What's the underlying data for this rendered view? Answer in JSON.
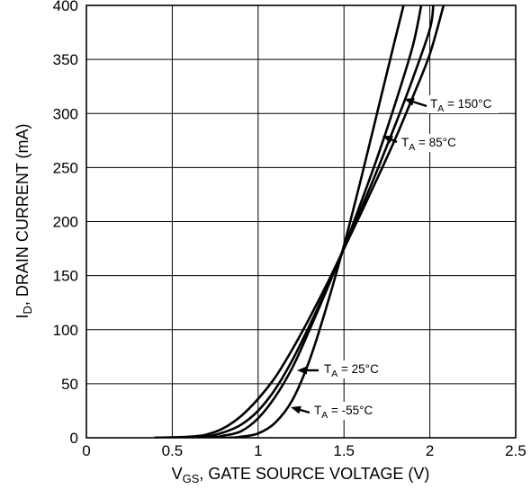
{
  "chart_data": {
    "type": "line",
    "title": "",
    "xlabel": {
      "main": "V",
      "sub": "GS",
      "rest": ", GATE SOURCE VOLTAGE (V)"
    },
    "ylabel": {
      "main": "I",
      "sub": "D",
      "rest": ", DRAIN CURRENT (mA)"
    },
    "xlim": [
      0,
      2.5
    ],
    "ylim": [
      0,
      400
    ],
    "xticks": [
      0,
      0.5,
      1,
      1.5,
      2,
      2.5
    ],
    "xtick_labels": [
      "0",
      "0.5",
      "1",
      "1.5",
      "2",
      "2.5"
    ],
    "yticks": [
      0,
      50,
      100,
      150,
      200,
      250,
      300,
      350,
      400
    ],
    "ytick_labels": [
      "0",
      "50",
      "100",
      "150",
      "200",
      "250",
      "300",
      "350",
      "400"
    ],
    "grid": true,
    "legend": "none",
    "line_color": "#000000",
    "series": [
      {
        "name": "T_A = -55°C",
        "x": [
          0.4,
          0.8,
          0.9,
          1.0,
          1.1,
          1.2,
          1.3,
          1.4,
          1.5,
          1.6,
          1.7,
          1.8,
          1.85
        ],
        "y": [
          0,
          0,
          1,
          4,
          14,
          35,
          72,
          122,
          178,
          240,
          305,
          370,
          402
        ]
      },
      {
        "name": "T_A = 25°C",
        "x": [
          0.4,
          0.7,
          0.8,
          0.9,
          1.0,
          1.1,
          1.2,
          1.3,
          1.4,
          1.5,
          1.6,
          1.7,
          1.8,
          1.9,
          1.95
        ],
        "y": [
          0,
          0,
          2,
          6,
          18,
          38,
          65,
          100,
          137,
          176,
          218,
          262,
          310,
          362,
          400
        ]
      },
      {
        "name": "T_A = 85°C",
        "x": [
          0.4,
          0.6,
          0.7,
          0.8,
          0.9,
          1.0,
          1.1,
          1.2,
          1.3,
          1.4,
          1.5,
          1.6,
          1.7,
          1.8,
          1.9,
          2.0,
          2.02
        ],
        "y": [
          0,
          0,
          1,
          5,
          12,
          25,
          45,
          72,
          104,
          138,
          175,
          212,
          250,
          290,
          332,
          378,
          400
        ]
      },
      {
        "name": "T_A = 150°C",
        "x": [
          0.4,
          0.6,
          0.7,
          0.8,
          0.9,
          1.0,
          1.1,
          1.2,
          1.3,
          1.4,
          1.5,
          1.6,
          1.7,
          1.8,
          1.9,
          2.0,
          2.08
        ],
        "y": [
          0,
          1,
          3,
          9,
          20,
          36,
          56,
          82,
          111,
          142,
          175,
          208,
          242,
          277,
          315,
          355,
          400
        ]
      }
    ],
    "annotations": [
      {
        "series": "T_A = 150°C",
        "main": "T",
        "sub": "A",
        "rest": " = 150°C"
      },
      {
        "series": "T_A = 85°C",
        "main": "T",
        "sub": "A",
        "rest": " = 85°C"
      },
      {
        "series": "T_A = 25°C",
        "main": "T",
        "sub": "A",
        "rest": " = 25°C"
      },
      {
        "series": "T_A = -55°C",
        "main": "T",
        "sub": "A",
        "rest": " = -55°C"
      }
    ]
  }
}
